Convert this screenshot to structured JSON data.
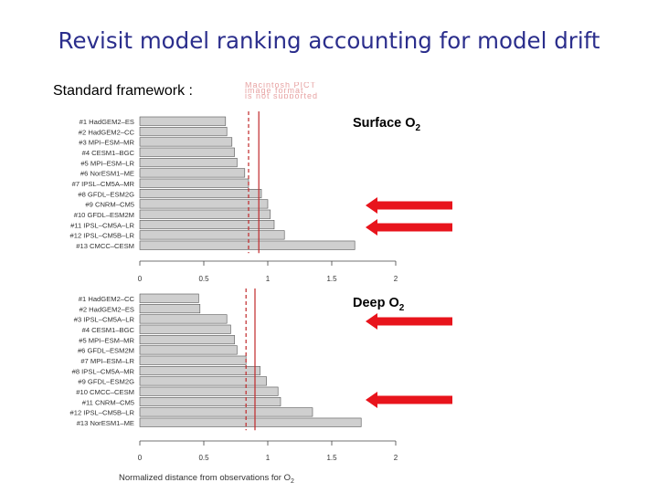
{
  "slide": {
    "title": "Revisit model ranking accounting for model drift",
    "framework_label": "Standard framework :",
    "placeholder_lines": [
      "Macintosh PICT",
      "image format",
      "is not supported"
    ]
  },
  "colors": {
    "title": "#2b2e8c",
    "bar": "#cfcfcf",
    "bar_stroke": "#555555",
    "reference_line": "#c0282a",
    "arrow": "#e8141c"
  },
  "chart_data": [
    {
      "type": "bar",
      "orientation": "horizontal",
      "label_main": "Surface O",
      "label_sub": "2",
      "categories": [
        "#1 HadGEM2–ES",
        "#2 HadGEM2–CC",
        "#3 MPI–ESM–MR",
        "#4 CESM1–BGC",
        "#5 MPI–ESM–LR",
        "#6 NorESM1–ME",
        "#7 IPSL–CM5A–MR",
        "#8 GFDL–ESM2G",
        "#9 CNRM–CM5",
        "#10 GFDL–ESM2M",
        "#11 IPSL–CM5A–LR",
        "#12 IPSL–CM5B–LR",
        "#13 CMCC–CESM"
      ],
      "values": [
        0.67,
        0.68,
        0.72,
        0.74,
        0.76,
        0.82,
        0.85,
        0.95,
        1.0,
        1.02,
        1.05,
        1.13,
        1.68
      ],
      "dashed_line": 0.85,
      "solid_line": 0.93,
      "xlim": [
        0,
        2
      ],
      "xticks": [
        "0",
        "0.5",
        "1",
        "1.5",
        "2"
      ],
      "highlighted": [
        "#10 GFDL–ESM2M",
        "#12 IPSL–CM5B–LR"
      ]
    },
    {
      "type": "bar",
      "orientation": "horizontal",
      "label_main": "Deep O",
      "label_sub": "2",
      "categories": [
        "#1 HadGEM2–CC",
        "#2 HadGEM2–ES",
        "#3 IPSL–CM5A–LR",
        "#4 CESM1–BGC",
        "#5 MPI–ESM–MR",
        "#6 GFDL–ESM2M",
        "#7 MPI–ESM–LR",
        "#8 IPSL–CM5A–MR",
        "#9 GFDL–ESM2G",
        "#10 CMCC–CESM",
        "#11 CNRM–CM5",
        "#12 IPSL–CM5B–LR",
        "#13 NorESM1–ME"
      ],
      "values": [
        0.46,
        0.47,
        0.68,
        0.71,
        0.74,
        0.76,
        0.83,
        0.94,
        0.99,
        1.08,
        1.1,
        1.35,
        1.73
      ],
      "dashed_line": 0.83,
      "solid_line": 0.9,
      "xlim": [
        0,
        2
      ],
      "xticks": [
        "0",
        "0.5",
        "1",
        "1.5",
        "2"
      ],
      "highlighted": [
        "#1 HadGEM2–CC",
        "#11 CNRM–CM5"
      ]
    }
  ],
  "xaxis_title": {
    "main": "Normalized distance from observations for O",
    "sub": "2"
  }
}
